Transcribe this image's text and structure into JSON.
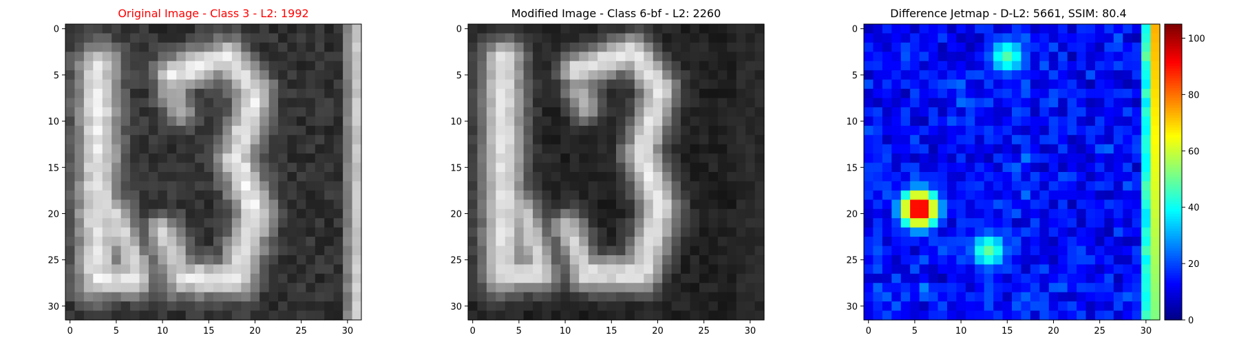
{
  "chart_data": [
    {
      "type": "heatmap",
      "title": "Original Image - Class 3 - L2: 1992",
      "title_color": "#ff0000",
      "colormap": "gray",
      "xticks": [
        "0",
        "5",
        "10",
        "15",
        "20",
        "25",
        "30"
      ],
      "yticks": [
        "0",
        "5",
        "10",
        "15",
        "20",
        "25",
        "30"
      ],
      "xlim": [
        -0.5,
        31.5
      ],
      "ylim": [
        31.5,
        -0.5
      ],
      "grid": false,
      "content": "32x32 grayscale image of a bright digit '3' preceded by a partial vertical stroke on the left, with a bright vertical band at the right edge (col 31)"
    },
    {
      "type": "heatmap",
      "title": "Modified Image - Class 6-bf - L2: 2260",
      "title_color": "#000000",
      "colormap": "gray",
      "xticks": [
        "0",
        "5",
        "10",
        "15",
        "20",
        "25",
        "30"
      ],
      "yticks": [
        "0",
        "5",
        "10",
        "15",
        "20",
        "25",
        "30"
      ],
      "xlim": [
        -0.5,
        31.5
      ],
      "ylim": [
        31.5,
        -0.5
      ],
      "grid": false,
      "content": "32x32 grayscale image similar to the original, with darker background and the right edge band removed"
    },
    {
      "type": "heatmap",
      "title": "Difference Jetmap - D-L2: 5661, SSIM: 80.4",
      "title_color": "#000000",
      "colormap": "jet",
      "xticks": [
        "0",
        "5",
        "10",
        "15",
        "20",
        "25",
        "30"
      ],
      "yticks": [
        "0",
        "5",
        "10",
        "15",
        "20",
        "25",
        "30"
      ],
      "xlim": [
        -0.5,
        31.5
      ],
      "ylim": [
        31.5,
        -0.5
      ],
      "grid": false,
      "colorbar": {
        "vmin": 0,
        "vmax": 105,
        "ticks": [
          "0",
          "20",
          "40",
          "60",
          "80",
          "100"
        ]
      },
      "hotspots": [
        {
          "x": 5.5,
          "y": 19.5,
          "value": 100
        },
        {
          "x": 31,
          "y": 3,
          "value": 70
        },
        {
          "x": 15,
          "y": 3,
          "value": 48
        },
        {
          "x": 13,
          "y": 24,
          "value": 50
        }
      ]
    }
  ]
}
